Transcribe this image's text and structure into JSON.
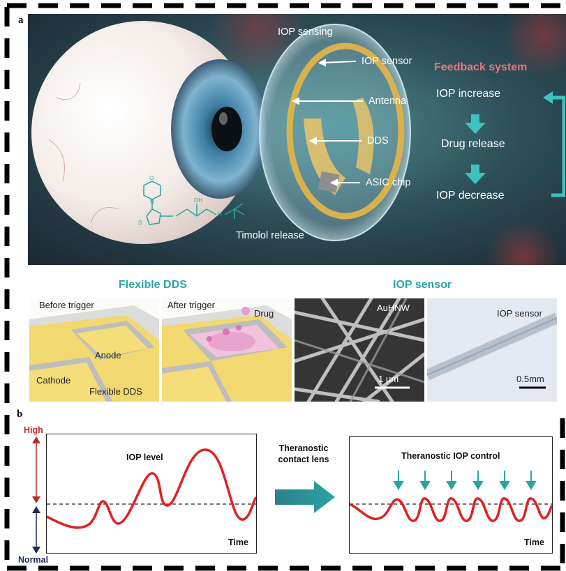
{
  "panel_a": {
    "label": "a",
    "iop_sensing": "IOP sensing",
    "callouts": {
      "iop_sensor": "IOP sensor",
      "antenna": "Antenna",
      "dds": "DDS",
      "asic_chip": "ASIC chip"
    },
    "timolol_release": "Timolol release",
    "chem_labels": {
      "oh": "OH",
      "n": "N",
      "o": "O",
      "nh": "H",
      "s": "S"
    },
    "feedback": {
      "title": "Feedback system",
      "steps": [
        "IOP increase",
        "Drug release",
        "IOP decrease"
      ]
    }
  },
  "flexible_dds": {
    "title": "Flexible DDS",
    "before": {
      "caption": "Before trigger",
      "anode": "Anode",
      "cathode": "Cathode",
      "flexible_dds": "Flexible DDS"
    },
    "after": {
      "caption": "After trigger",
      "drug": "Drug"
    }
  },
  "iop_sensor_section": {
    "title": "IOP sensor",
    "sem": {
      "label": "AuHNW",
      "scale": "1 μm"
    },
    "photo": {
      "label": "IOP sensor",
      "scale": "0.5mm"
    }
  },
  "panel_b": {
    "label": "b",
    "axis": {
      "high": "High",
      "normal": "Normal"
    },
    "left_plot": {
      "title": "IOP level",
      "xlabel": "Time"
    },
    "arrow_text": [
      "Theranostic",
      "contact lens"
    ],
    "right_plot": {
      "title": "Theranostic IOP control",
      "xlabel": "Time"
    }
  },
  "colors": {
    "teal": "#2aa5a2",
    "feedback_title": "#e8757a",
    "curve": "#e02020",
    "axis_red": "#c0272d",
    "axis_navy": "#1d2b5a"
  }
}
